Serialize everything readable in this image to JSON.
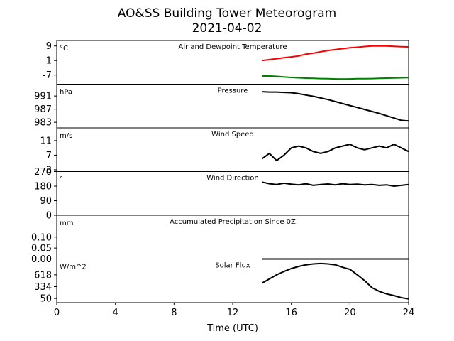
{
  "title": "AO&SS Building Tower Meteorogram",
  "subtitle": "2021-04-02",
  "chart_data": {
    "type": "line",
    "title": "AO&SS Building Tower Meteorogram",
    "subtitle": "2021-04-02",
    "xlabel": "Time (UTC)",
    "xlim": [
      0,
      24
    ],
    "x_ticks": [
      0,
      4,
      8,
      12,
      16,
      20,
      24
    ],
    "panels": [
      {
        "label": "Air and Dewpoint Temperature",
        "unit": "°C",
        "ylim": [
          -12,
          12
        ],
        "y_ticks": [
          9,
          1,
          -7
        ],
        "series": [
          {
            "color": "#ff0000",
            "x": [
              14,
              14.5,
              15,
              15.5,
              16,
              16.5,
              17,
              17.5,
              18,
              18.5,
              19,
              19.5,
              20,
              20.5,
              21,
              21.5,
              22,
              22.5,
              23,
              23.5,
              24
            ],
            "values": [
              1,
              1.5,
              2,
              2.5,
              3,
              3.5,
              4.5,
              5,
              5.8,
              6.5,
              7,
              7.5,
              8,
              8.3,
              8.7,
              9,
              9,
              9,
              8.8,
              8.6,
              8.5
            ]
          },
          {
            "color": "#008000",
            "x": [
              14,
              14.5,
              15,
              15.5,
              16,
              16.5,
              17,
              17.5,
              18,
              18.5,
              19,
              19.5,
              20,
              20.5,
              21,
              21.5,
              22,
              22.5,
              23,
              23.5,
              24
            ],
            "values": [
              -7.5,
              -7.5,
              -7.7,
              -8,
              -8.3,
              -8.5,
              -8.7,
              -8.8,
              -8.9,
              -9,
              -9.1,
              -9.2,
              -9.1,
              -9,
              -9,
              -8.9,
              -8.8,
              -8.7,
              -8.6,
              -8.5,
              -8.4
            ]
          }
        ]
      },
      {
        "label": "Pressure",
        "unit": "hPa",
        "ylim": [
          981.3,
          994.6
        ],
        "y_ticks": [
          991,
          987,
          983
        ],
        "series": [
          {
            "color": "#000000",
            "x": [
              14,
              14.5,
              15,
              15.5,
              16,
              16.5,
              17,
              17.5,
              18,
              18.5,
              19,
              19.5,
              20,
              20.5,
              21,
              21.5,
              22,
              22.5,
              23,
              23.5,
              24
            ],
            "values": [
              992.3,
              992.2,
              992.2,
              992.1,
              992,
              991.7,
              991.3,
              990.9,
              990.4,
              989.9,
              989.3,
              988.7,
              988.1,
              987.5,
              986.9,
              986.3,
              985.7,
              985,
              984.3,
              983.6,
              983.4
            ]
          }
        ]
      },
      {
        "label": "Wind Speed",
        "unit": "m/s",
        "ylim": [
          2.5,
          14.5
        ],
        "y_ticks": [
          11,
          7,
          3
        ],
        "series": [
          {
            "color": "#000000",
            "x": [
              14,
              14.5,
              15,
              15.5,
              16,
              16.5,
              17,
              17.5,
              18,
              18.5,
              19,
              19.5,
              20,
              20.5,
              21,
              21.5,
              22,
              22.5,
              23,
              23.5,
              24
            ],
            "values": [
              6,
              7.5,
              5.5,
              7,
              9,
              9.5,
              9,
              8,
              7.5,
              8,
              9,
              9.5,
              10,
              9,
              8.5,
              9,
              9.5,
              9,
              10,
              9,
              8
            ]
          }
        ]
      },
      {
        "label": "Wind Direction",
        "unit": "°",
        "ylim": [
          0,
          270
        ],
        "y_ticks": [
          270,
          180,
          90,
          0
        ],
        "series": [
          {
            "color": "#000000",
            "x": [
              14,
              14.5,
              15,
              15.5,
              16,
              16.5,
              17,
              17.5,
              18,
              18.5,
              19,
              19.5,
              20,
              20.5,
              21,
              21.5,
              22,
              22.5,
              23,
              23.5,
              24
            ],
            "values": [
              205,
              195,
              190,
              198,
              192,
              188,
              195,
              185,
              190,
              193,
              188,
              195,
              190,
              192,
              188,
              190,
              185,
              188,
              180,
              185,
              190
            ]
          }
        ]
      },
      {
        "label": "Accumulated Precipitation Since 0Z",
        "unit": "mm",
        "ylim": [
          0,
          0.2
        ],
        "y_ticks": [
          0.1,
          0.05,
          0.0
        ],
        "y_tick_labels": [
          "0.10",
          "0.05",
          "0.00"
        ],
        "series": [
          {
            "color": "#000000",
            "x": [
              14,
              24
            ],
            "values": [
              0,
              0
            ]
          }
        ]
      },
      {
        "label": "Solar Flux",
        "unit": "W/m^2",
        "ylim": [
          -50,
          1000
        ],
        "y_ticks": [
          618,
          334,
          50
        ],
        "series": [
          {
            "color": "#000000",
            "x": [
              14,
              14.5,
              15,
              15.5,
              16,
              16.5,
              17,
              17.5,
              18,
              18.5,
              19,
              19.5,
              20,
              20.5,
              21,
              21.5,
              22,
              22.5,
              23,
              23.5,
              24
            ],
            "values": [
              420,
              520,
              620,
              700,
              770,
              820,
              860,
              880,
              890,
              880,
              860,
              800,
              750,
              620,
              480,
              310,
              220,
              160,
              120,
              70,
              40
            ]
          }
        ]
      }
    ]
  }
}
